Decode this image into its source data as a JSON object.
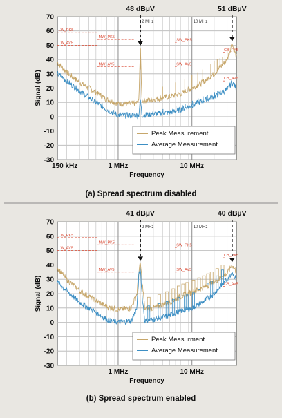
{
  "chart_data": [
    {
      "type": "line",
      "title": "",
      "caption": "(a) Spread spectrum disabled",
      "xlabel": "Frequency",
      "ylabel": "Signal (dB)",
      "x_scale": "log",
      "xlim_hz": [
        150000,
        40000000
      ],
      "ylim": [
        -30,
        70
      ],
      "yticks": [
        -30,
        -20,
        -10,
        0,
        10,
        20,
        30,
        40,
        50,
        60,
        70
      ],
      "xtick_labels": [
        {
          "label": "150 kHz",
          "hz": 150000
        },
        {
          "label": "1 MHz",
          "hz": 1000000
        },
        {
          "label": "10 MHz",
          "hz": 10000000
        }
      ],
      "top_labels": [
        {
          "label": "2 MHz",
          "hz": 2000000
        },
        {
          "label": "10 MHz",
          "hz": 10000000
        }
      ],
      "grid": true,
      "legend_position": "bottom-right",
      "series": [
        {
          "name": "Peak Measurement",
          "color": "#c7a76b",
          "points": [
            [
              150000,
              38
            ],
            [
              200000,
              31
            ],
            [
              300000,
              24
            ],
            [
              500000,
              17
            ],
            [
              700000,
              12
            ],
            [
              1000000,
              9
            ],
            [
              1500000,
              9
            ],
            [
              1900000,
              10
            ],
            [
              2000000,
              48
            ],
            [
              2100000,
              11
            ],
            [
              3000000,
              12
            ],
            [
              5000000,
              14
            ],
            [
              7000000,
              16
            ],
            [
              10000000,
              20
            ],
            [
              14000000,
              24
            ],
            [
              20000000,
              30
            ],
            [
              30000000,
              40
            ],
            [
              35000000,
              51
            ],
            [
              40000000,
              42
            ]
          ]
        },
        {
          "name": "Average Measurement",
          "color": "#3d8fc4",
          "points": [
            [
              150000,
              30
            ],
            [
              200000,
              25
            ],
            [
              300000,
              18
            ],
            [
              500000,
              10
            ],
            [
              700000,
              5
            ],
            [
              1000000,
              1
            ],
            [
              1500000,
              1
            ],
            [
              1900000,
              1
            ],
            [
              2000000,
              12
            ],
            [
              2100000,
              1
            ],
            [
              3000000,
              2
            ],
            [
              5000000,
              3
            ],
            [
              7000000,
              5
            ],
            [
              10000000,
              8
            ],
            [
              14000000,
              11
            ],
            [
              20000000,
              14
            ],
            [
              30000000,
              19
            ],
            [
              35000000,
              24
            ],
            [
              40000000,
              20
            ]
          ]
        }
      ],
      "spikes_peak": [
        {
          "hz": 2000000,
          "top": 48
        },
        {
          "hz": 4000000,
          "top": 21
        },
        {
          "hz": 6000000,
          "top": 24
        },
        {
          "hz": 8000000,
          "top": 26
        },
        {
          "hz": 10000000,
          "top": 29
        },
        {
          "hz": 12000000,
          "top": 31
        },
        {
          "hz": 14000000,
          "top": 33
        },
        {
          "hz": 16000000,
          "top": 35
        },
        {
          "hz": 18000000,
          "top": 37
        },
        {
          "hz": 20000000,
          "top": 39
        },
        {
          "hz": 22000000,
          "top": 40
        },
        {
          "hz": 24000000,
          "top": 41
        },
        {
          "hz": 26000000,
          "top": 42
        },
        {
          "hz": 28000000,
          "top": 44
        },
        {
          "hz": 30000000,
          "top": 46
        },
        {
          "hz": 32000000,
          "top": 48
        },
        {
          "hz": 35000000,
          "top": 51
        }
      ],
      "annotations": [
        {
          "text": "48 dBµV",
          "hz": 2000000,
          "y": 48
        },
        {
          "text": "51 dBµV",
          "hz": 35000000,
          "y": 51
        }
      ],
      "limit_lines": [
        {
          "label": "LW_PK5",
          "hz_from": 150000,
          "hz_to": 520000,
          "y": 59
        },
        {
          "label": "LW_AV5",
          "hz_from": 150000,
          "hz_to": 520000,
          "y": 50
        },
        {
          "label": "MW_PK5",
          "hz_from": 520000,
          "hz_to": 1700000,
          "y": 54
        },
        {
          "label": "MW_AV5",
          "hz_from": 520000,
          "hz_to": 1700000,
          "y": 35
        },
        {
          "label": "SW_PK5",
          "hz_from": 5900000,
          "hz_to": 6200000,
          "y": 52
        },
        {
          "label": "SW_AV5",
          "hz_from": 5900000,
          "hz_to": 6200000,
          "y": 35
        },
        {
          "label": "CB_PK5",
          "hz_from": 26000000,
          "hz_to": 28000000,
          "y": 45
        },
        {
          "label": "CB_AV5",
          "hz_from": 26000000,
          "hz_to": 28000000,
          "y": 25
        }
      ]
    },
    {
      "type": "line",
      "title": "",
      "caption": "(b) Spread spectrum enabled",
      "xlabel": "Frequency",
      "ylabel": "Signal (dB)",
      "x_scale": "log",
      "xlim_hz": [
        150000,
        40000000
      ],
      "ylim": [
        -30,
        70
      ],
      "yticks": [
        -30,
        -20,
        -10,
        0,
        10,
        20,
        30,
        40,
        50,
        60,
        70
      ],
      "xtick_labels": [
        {
          "label": "1 MHz",
          "hz": 1000000
        },
        {
          "label": "10 MHz",
          "hz": 10000000
        }
      ],
      "top_labels": [
        {
          "label": "2 MHz",
          "hz": 2000000
        },
        {
          "label": "10 MHz",
          "hz": 10000000
        }
      ],
      "grid": true,
      "legend_position": "bottom-right",
      "series": [
        {
          "name": "Peak Measurment",
          "color": "#c7a76b",
          "points": [
            [
              150000,
              38
            ],
            [
              200000,
              30
            ],
            [
              300000,
              22
            ],
            [
              500000,
              15
            ],
            [
              700000,
              11
            ],
            [
              1000000,
              9
            ],
            [
              1500000,
              10
            ],
            [
              1800000,
              20
            ],
            [
              1900000,
              35
            ],
            [
              2000000,
              41
            ],
            [
              2100000,
              30
            ],
            [
              2300000,
              9
            ],
            [
              3000000,
              10
            ],
            [
              5000000,
              14
            ],
            [
              7000000,
              18
            ],
            [
              10000000,
              21
            ],
            [
              14000000,
              24
            ],
            [
              20000000,
              28
            ],
            [
              30000000,
              34
            ],
            [
              35000000,
              40
            ],
            [
              40000000,
              35
            ]
          ]
        },
        {
          "name": "Average Measurement",
          "color": "#3d8fc4",
          "points": [
            [
              150000,
              28
            ],
            [
              200000,
              22
            ],
            [
              300000,
              14
            ],
            [
              500000,
              7
            ],
            [
              700000,
              2
            ],
            [
              1000000,
              0
            ],
            [
              1500000,
              1
            ],
            [
              1800000,
              10
            ],
            [
              1900000,
              32
            ],
            [
              2000000,
              38
            ],
            [
              2100000,
              20
            ],
            [
              2300000,
              1
            ],
            [
              3000000,
              2
            ],
            [
              5000000,
              5
            ],
            [
              7000000,
              8
            ],
            [
              10000000,
              10
            ],
            [
              14000000,
              14
            ],
            [
              20000000,
              20
            ],
            [
              30000000,
              30
            ],
            [
              35000000,
              35
            ],
            [
              40000000,
              30
            ]
          ]
        }
      ],
      "annotations": [
        {
          "text": "41 dBµV",
          "hz": 2000000,
          "y": 41
        },
        {
          "text": "40 dBµV",
          "hz": 35000000,
          "y": 40
        }
      ],
      "limit_lines": [
        {
          "label": "LW_PK5",
          "hz_from": 150000,
          "hz_to": 520000,
          "y": 59
        },
        {
          "label": "LW_AV5",
          "hz_from": 150000,
          "hz_to": 520000,
          "y": 50
        },
        {
          "label": "MW_PK5",
          "hz_from": 520000,
          "hz_to": 1700000,
          "y": 54
        },
        {
          "label": "MW_AV5",
          "hz_from": 520000,
          "hz_to": 1700000,
          "y": 35
        },
        {
          "label": "SW_PK5",
          "hz_from": 5900000,
          "hz_to": 6200000,
          "y": 52
        },
        {
          "label": "SW_AV5",
          "hz_from": 5900000,
          "hz_to": 6200000,
          "y": 35
        },
        {
          "label": "CB_PK5",
          "hz_from": 26000000,
          "hz_to": 28000000,
          "y": 45
        },
        {
          "label": "CB_AV5",
          "hz_from": 26000000,
          "hz_to": 28000000,
          "y": 25
        }
      ]
    }
  ]
}
